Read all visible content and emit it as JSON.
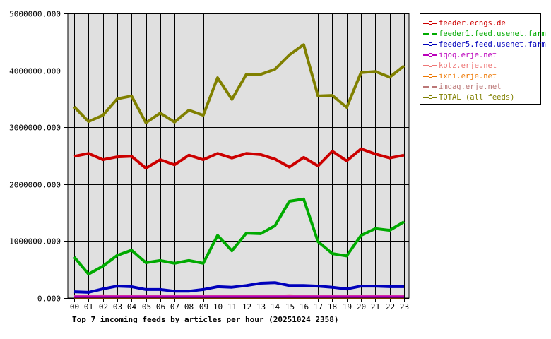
{
  "chart_data": {
    "type": "line",
    "title": "Top 7 incoming feeds by articles per hour (20251024 2358)",
    "xlabel": "",
    "ylabel": "",
    "ylim": [
      0,
      5000000
    ],
    "yticks": [
      "0.000",
      "1000000.000",
      "2000000.000",
      "3000000.000",
      "4000000.000",
      "5000000.000"
    ],
    "grid": true,
    "legend_position": "right",
    "categories": [
      "00",
      "01",
      "02",
      "03",
      "04",
      "05",
      "06",
      "07",
      "08",
      "09",
      "10",
      "11",
      "12",
      "13",
      "14",
      "15",
      "16",
      "17",
      "18",
      "19",
      "20",
      "21",
      "22",
      "23"
    ],
    "series": [
      {
        "name": "feeder.ecngs.de",
        "color": "#cc0000",
        "values": [
          2490000,
          2540000,
          2430000,
          2480000,
          2490000,
          2280000,
          2430000,
          2340000,
          2510000,
          2430000,
          2540000,
          2460000,
          2540000,
          2520000,
          2440000,
          2300000,
          2470000,
          2320000,
          2580000,
          2410000,
          2620000,
          2530000,
          2460000,
          2510000
        ]
      },
      {
        "name": "feeder1.feed.usenet.farm",
        "color": "#00aa00",
        "values": [
          720000,
          420000,
          560000,
          750000,
          840000,
          620000,
          660000,
          610000,
          660000,
          610000,
          1100000,
          830000,
          1140000,
          1130000,
          1270000,
          1700000,
          1740000,
          990000,
          780000,
          740000,
          1100000,
          1220000,
          1190000,
          1340000
        ]
      },
      {
        "name": "feeder5.feed.usenet.farm",
        "color": "#0000bb",
        "values": [
          110000,
          100000,
          160000,
          210000,
          200000,
          150000,
          150000,
          120000,
          120000,
          150000,
          200000,
          190000,
          220000,
          260000,
          270000,
          220000,
          220000,
          210000,
          190000,
          160000,
          210000,
          210000,
          200000,
          200000
        ]
      },
      {
        "name": "iqoq.erje.net",
        "color": "#bb00bb",
        "values": [
          20000,
          20000,
          20000,
          20000,
          20000,
          20000,
          20000,
          20000,
          20000,
          20000,
          20000,
          20000,
          20000,
          20000,
          20000,
          20000,
          20000,
          20000,
          20000,
          20000,
          20000,
          20000,
          20000,
          20000
        ]
      },
      {
        "name": "kotz.erje.net",
        "color": "#ee7777",
        "values": [
          30000,
          30000,
          40000,
          30000,
          30000,
          30000,
          30000,
          30000,
          30000,
          30000,
          30000,
          30000,
          30000,
          30000,
          30000,
          40000,
          30000,
          30000,
          30000,
          30000,
          30000,
          30000,
          30000,
          30000
        ]
      },
      {
        "name": "ixni.erje.net",
        "color": "#ee7700",
        "values": [
          5000,
          5000,
          5000,
          5000,
          5000,
          5000,
          5000,
          5000,
          5000,
          5000,
          5000,
          5000,
          5000,
          5000,
          5000,
          5000,
          5000,
          5000,
          5000,
          5000,
          5000,
          5000,
          5000,
          5000
        ]
      },
      {
        "name": "imqag.erje.net",
        "color": "#bb7777",
        "values": [
          10000,
          10000,
          10000,
          10000,
          10000,
          10000,
          10000,
          10000,
          10000,
          10000,
          10000,
          10000,
          10000,
          10000,
          10000,
          10000,
          10000,
          10000,
          10000,
          10000,
          10000,
          10000,
          10000,
          10000
        ]
      },
      {
        "name": "TOTAL (all feeds)",
        "color": "#808000",
        "values": [
          3360000,
          3100000,
          3210000,
          3500000,
          3550000,
          3080000,
          3250000,
          3090000,
          3300000,
          3210000,
          3870000,
          3490000,
          3930000,
          3930000,
          4020000,
          4270000,
          4450000,
          3550000,
          3560000,
          3350000,
          3960000,
          3980000,
          3880000,
          4080000
        ]
      }
    ]
  },
  "legend": {
    "items": [
      {
        "label": "feeder.ecngs.de",
        "color": "#cc0000"
      },
      {
        "label": "feeder1.feed.usenet.farm",
        "color": "#00aa00"
      },
      {
        "label": "feeder5.feed.usenet.farm",
        "color": "#0000bb"
      },
      {
        "label": "iqoq.erje.net",
        "color": "#bb00bb"
      },
      {
        "label": "kotz.erje.net",
        "color": "#ee7777"
      },
      {
        "label": "ixni.erje.net",
        "color": "#ee7700"
      },
      {
        "label": "imqag.erje.net",
        "color": "#bb7777"
      },
      {
        "label": "TOTAL (all feeds)",
        "color": "#808000"
      }
    ]
  },
  "colors": {
    "plot_background": "#e0e0e0",
    "grid": "#000000",
    "frame": "#000000"
  }
}
